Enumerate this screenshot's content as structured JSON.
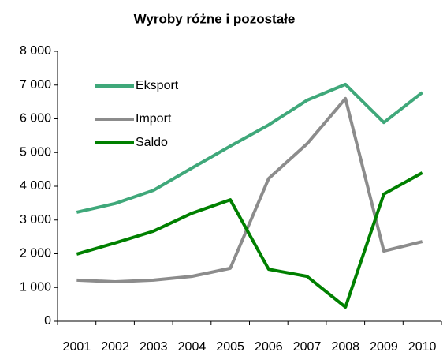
{
  "chart_data": {
    "type": "line",
    "title": "Wyroby różne i pozostałe",
    "categories": [
      "2001",
      "2002",
      "2003",
      "2004",
      "2005",
      "2006",
      "2007",
      "2008",
      "2009",
      "2010"
    ],
    "series": [
      {
        "name": "Eksport",
        "color": "#3fa87a",
        "values": [
          3230,
          3490,
          3880,
          4540,
          5190,
          5820,
          6550,
          7020,
          5890,
          6780
        ]
      },
      {
        "name": "Import",
        "color": "#8c8c8c",
        "values": [
          1220,
          1170,
          1220,
          1330,
          1570,
          4230,
          5260,
          6600,
          2080,
          2360
        ]
      },
      {
        "name": "Saldo",
        "color": "#008000",
        "values": [
          1990,
          2320,
          2670,
          3200,
          3600,
          1540,
          1330,
          420,
          3770,
          4400
        ]
      }
    ],
    "ylim": [
      0,
      8000
    ],
    "yticks": [
      {
        "value": 0,
        "label": "0"
      },
      {
        "value": 1000,
        "label": "1 000"
      },
      {
        "value": 2000,
        "label": "2 000"
      },
      {
        "value": 3000,
        "label": "3 000"
      },
      {
        "value": 4000,
        "label": "4 000"
      },
      {
        "value": 5000,
        "label": "5 000"
      },
      {
        "value": 6000,
        "label": "6 000"
      },
      {
        "value": 7000,
        "label": "7 000"
      },
      {
        "value": 8000,
        "label": "8 000"
      }
    ],
    "grid": false,
    "legend": "upper left"
  }
}
